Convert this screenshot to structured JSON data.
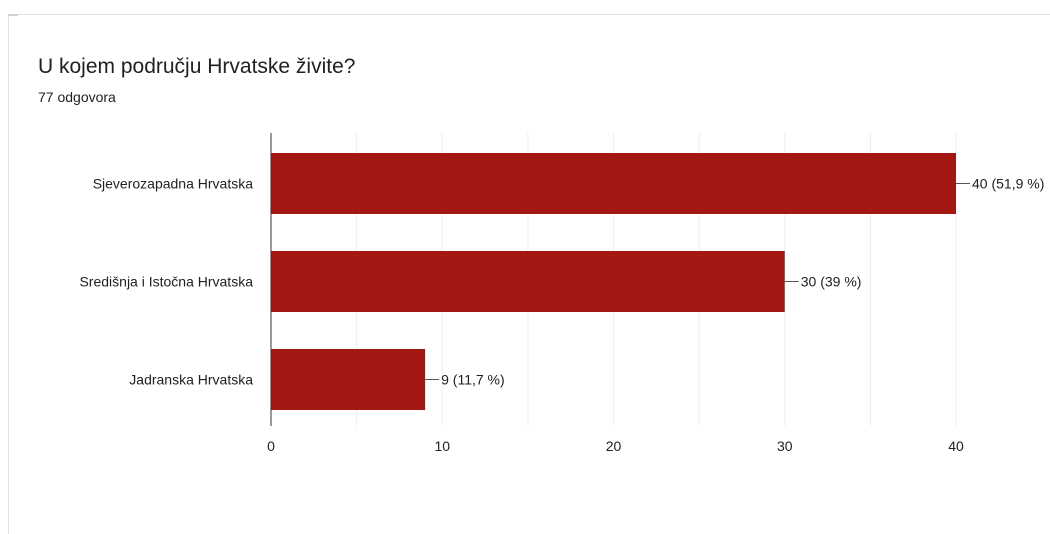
{
  "question": {
    "title": "U kojem području Hrvatske živite?",
    "response_count": "77 odgovora"
  },
  "colors": {
    "bar": "#a31812",
    "grid": "#eeeeee",
    "axis": "#333333",
    "text": "#202124"
  },
  "chart_data": {
    "type": "bar",
    "orientation": "horizontal",
    "categories": [
      "Sjeverozapadna Hrvatska",
      "Središnja i Istočna Hrvatska",
      "Jadranska Hrvatska"
    ],
    "values": [
      40,
      30,
      9
    ],
    "data_labels": [
      "40 (51,9 %)",
      "30 (39 %)",
      "9 (11,7 %)"
    ],
    "xlim": [
      0,
      40
    ],
    "x_ticks": [
      0,
      10,
      20,
      30,
      40
    ],
    "x_tick_labels": [
      "0",
      "10",
      "20",
      "30",
      "40"
    ],
    "grid": true,
    "title": "",
    "xlabel": "",
    "ylabel": ""
  }
}
